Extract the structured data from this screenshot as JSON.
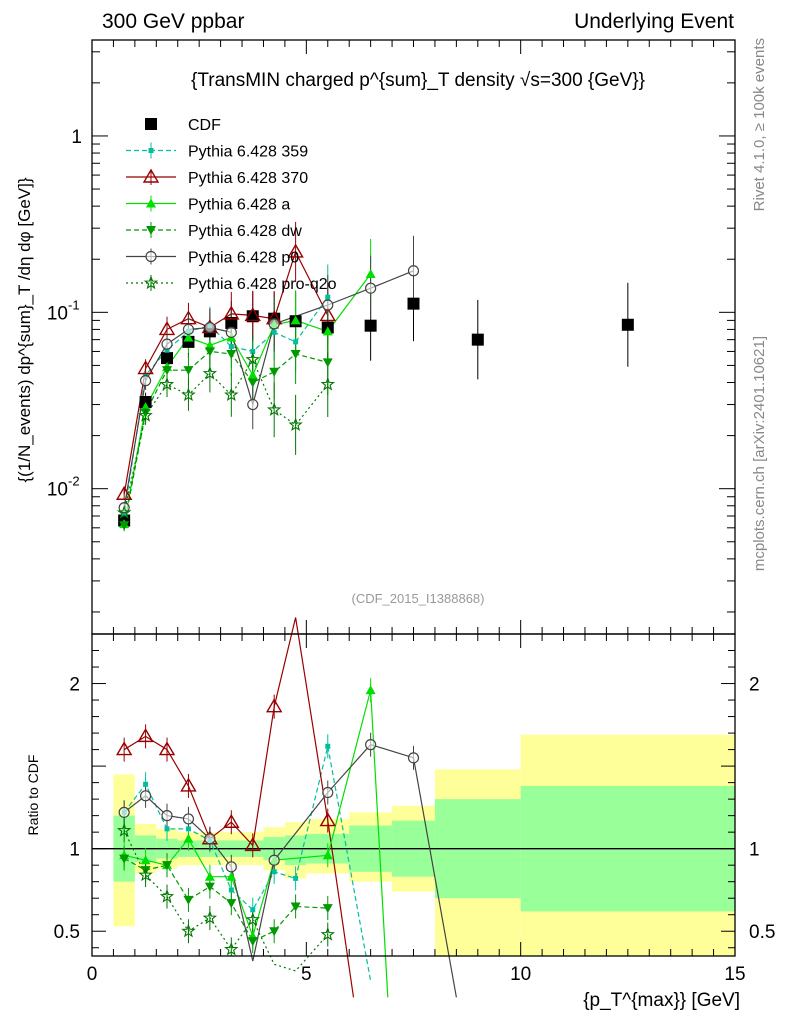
{
  "header": {
    "left": "300 GeV ppbar",
    "right": "Underlying Event"
  },
  "side_labels": {
    "rivet": "Rivet 4.1.0, ≥ 100k events",
    "mcplots": "mcplots.cern.ch [arXiv:2401.10621]"
  },
  "chart_data": {
    "type": "scatter",
    "title": "{TransMIN charged p^{sum}_T density √s=300 {GeV}}",
    "watermark": "(CDF_2015_I1388868)",
    "xlabel": "{p_T^{max}} [GeV]",
    "ylabel": "{(1/N_events) dp^{sum}_T /dη dφ [GeV]}",
    "ratio_ylabel": "Ratio to CDF",
    "xlim": [
      0,
      15
    ],
    "ylim": [
      0.0015,
      3.5
    ],
    "yscale": "log",
    "ratio_ylim": [
      0.35,
      2.3
    ],
    "x_ticks": [
      "0",
      "5",
      "10",
      "15"
    ],
    "y_ticks": [
      "10^-2",
      "10^-1",
      "1"
    ],
    "ratio_ticks": [
      "0.5",
      "1",
      "2"
    ],
    "legend_position": "top-left",
    "series": [
      {
        "name": "CDF",
        "color": "#000000",
        "marker": "square",
        "line": "none",
        "x": [
          0.75,
          1.25,
          1.75,
          2.25,
          2.75,
          3.25,
          3.75,
          4.25,
          4.75,
          5.5,
          6.5,
          7.5,
          9.0,
          12.5
        ],
        "y": [
          0.0066,
          0.031,
          0.055,
          0.068,
          0.078,
          0.087,
          0.095,
          0.092,
          0.089,
          0.082,
          0.084,
          0.112,
          0.07,
          0.085
        ]
      },
      {
        "name": "Pythia 6.428 359",
        "color": "#00bf9f",
        "marker": "small-square",
        "line": "dashed",
        "x": [
          0.75,
          1.25,
          1.75,
          2.25,
          2.75,
          3.25,
          3.75,
          4.25,
          4.75,
          5.5
        ],
        "y": [
          0.0072,
          0.044,
          0.061,
          0.078,
          0.084,
          0.064,
          0.06,
          0.077,
          0.068,
          0.122
        ]
      },
      {
        "name": "Pythia 6.428 370",
        "color": "#990000",
        "marker": "open-triangle",
        "line": "solid",
        "x": [
          0.75,
          1.25,
          1.75,
          2.25,
          2.75,
          3.25,
          3.75,
          4.25,
          4.75,
          5.5
        ],
        "y": [
          0.0093,
          0.048,
          0.08,
          0.092,
          0.082,
          0.098,
          0.096,
          0.092,
          0.22,
          0.096
        ]
      },
      {
        "name": "Pythia 6.428 a",
        "color": "#00e000",
        "marker": "triangle",
        "line": "solid",
        "x": [
          0.75,
          1.25,
          1.75,
          2.25,
          2.75,
          3.25,
          3.75,
          4.25,
          4.75,
          5.5,
          6.5
        ],
        "y": [
          0.0063,
          0.029,
          0.049,
          0.072,
          0.065,
          0.072,
          0.044,
          0.085,
          0.09,
          0.078,
          0.165
        ]
      },
      {
        "name": "Pythia 6.428 dw",
        "color": "#009900",
        "marker": "down-triangle",
        "line": "dashed",
        "x": [
          0.75,
          1.25,
          1.75,
          2.25,
          2.75,
          3.25,
          3.75,
          4.25,
          4.75,
          5.5
        ],
        "y": [
          0.0062,
          0.027,
          0.047,
          0.047,
          0.06,
          0.058,
          0.04,
          0.046,
          0.058,
          0.052
        ]
      },
      {
        "name": "Pythia 6.428 p0",
        "color": "#444444",
        "marker": "open-circle",
        "line": "solid",
        "x": [
          0.75,
          1.25,
          1.75,
          2.25,
          2.75,
          3.25,
          3.75,
          4.25,
          5.5,
          6.5,
          7.5
        ],
        "y": [
          0.0078,
          0.041,
          0.066,
          0.08,
          0.082,
          0.077,
          0.03,
          0.086,
          0.11,
          0.137,
          0.172
        ]
      },
      {
        "name": "Pythia 6.428 pro-q2o",
        "color": "#007700",
        "marker": "star",
        "line": "dotted",
        "x": [
          0.75,
          1.25,
          1.75,
          2.25,
          2.75,
          3.25,
          3.75,
          4.25,
          4.75,
          5.5
        ],
        "y": [
          0.0073,
          0.026,
          0.039,
          0.034,
          0.045,
          0.034,
          0.054,
          0.028,
          0.023,
          0.039
        ]
      }
    ],
    "ratio_series": [
      {
        "name": "Pythia 6.428 359",
        "x": [
          0.75,
          1.25,
          1.75,
          2.25,
          2.75,
          3.25,
          3.75,
          4.25,
          4.75,
          5.5,
          6.5
        ],
        "y": [
          1.22,
          1.39,
          1.12,
          1.12,
          1.05,
          0.75,
          0.63,
          0.86,
          0.82,
          1.62,
          0.2
        ]
      },
      {
        "name": "Pythia 6.428 370",
        "x": [
          0.75,
          1.25,
          1.75,
          2.25,
          2.75,
          3.25,
          3.75,
          4.25,
          4.75,
          5.5,
          6.1
        ],
        "y": [
          1.6,
          1.68,
          1.6,
          1.38,
          1.06,
          1.16,
          1.02,
          1.86,
          2.4,
          1.17,
          0.1
        ]
      },
      {
        "name": "Pythia 6.428 a",
        "x": [
          0.75,
          1.25,
          1.75,
          2.25,
          2.75,
          3.25,
          3.75,
          4.25,
          5.5,
          6.5,
          6.9
        ],
        "y": [
          0.96,
          0.93,
          0.9,
          1.06,
          0.83,
          0.83,
          0.47,
          0.93,
          0.96,
          1.96,
          0.1
        ]
      },
      {
        "name": "Pythia 6.428 dw",
        "x": [
          0.75,
          1.25,
          1.75,
          2.25,
          2.75,
          3.25,
          3.75,
          4.25,
          4.75,
          5.5
        ],
        "y": [
          0.94,
          0.87,
          0.9,
          0.69,
          0.77,
          0.67,
          0.44,
          0.5,
          0.65,
          0.64
        ]
      },
      {
        "name": "Pythia 6.428 p0",
        "x": [
          0.75,
          1.25,
          1.75,
          2.25,
          2.75,
          3.25,
          3.75,
          4.25,
          5.5,
          6.5,
          7.5,
          8.5
        ],
        "y": [
          1.22,
          1.32,
          1.2,
          1.18,
          1.06,
          0.89,
          0.32,
          0.93,
          1.34,
          1.63,
          1.55,
          0.1
        ]
      },
      {
        "name": "Pythia 6.428 pro-q2o",
        "x": [
          0.75,
          1.25,
          1.75,
          2.25,
          2.75,
          3.25,
          3.75,
          4.25,
          4.75,
          5.5
        ],
        "y": [
          1.11,
          0.84,
          0.71,
          0.5,
          0.58,
          0.39,
          0.57,
          0.3,
          0.26,
          0.48
        ]
      }
    ],
    "ratio_bands": {
      "x_edges": [
        0.5,
        1.0,
        1.5,
        2.0,
        2.5,
        3.0,
        3.5,
        4.0,
        4.5,
        5.0,
        6.0,
        7.0,
        8.0,
        10.0,
        15.0
      ],
      "green_low": [
        0.8,
        0.92,
        0.94,
        0.95,
        0.95,
        0.95,
        0.95,
        0.93,
        0.9,
        0.91,
        0.86,
        0.83,
        0.7,
        0.62
      ],
      "green_high": [
        1.2,
        1.08,
        1.06,
        1.05,
        1.05,
        1.05,
        1.05,
        1.07,
        1.08,
        1.09,
        1.14,
        1.17,
        1.3,
        1.38
      ],
      "yellow_low": [
        0.53,
        0.85,
        0.88,
        0.9,
        0.9,
        0.9,
        0.9,
        0.87,
        0.82,
        0.85,
        0.8,
        0.74,
        0.3,
        0.3
      ],
      "yellow_high": [
        1.45,
        1.15,
        1.12,
        1.1,
        1.1,
        1.1,
        1.1,
        1.13,
        1.16,
        1.18,
        1.22,
        1.26,
        1.48,
        1.69
      ]
    }
  }
}
